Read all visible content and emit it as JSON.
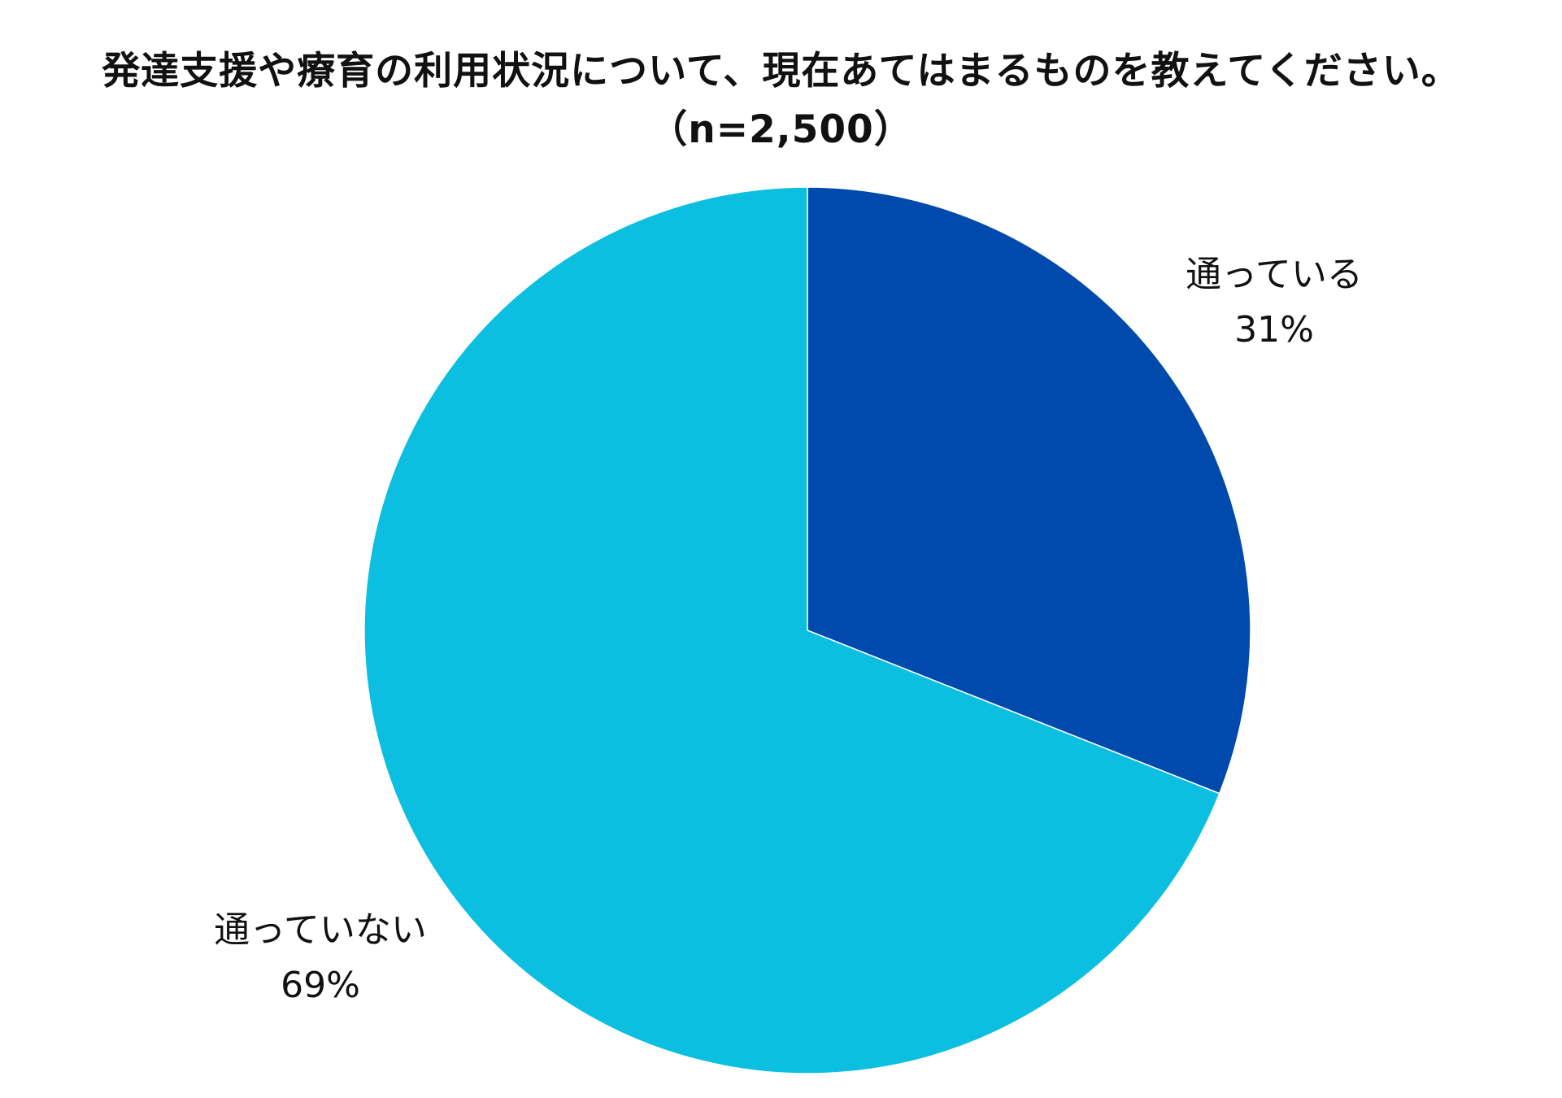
{
  "chart_data": {
    "type": "pie",
    "title": "発達支援や療育の利用状況について、現在あてはまるものを教えてください。",
    "subtitle": "（n=2,500）",
    "slices": [
      {
        "label": "通っている",
        "value": 31,
        "value_label": "31%",
        "color": "#004AAD"
      },
      {
        "label": "通っていない",
        "value": 69,
        "value_label": "69%",
        "color": "#0CBFE0"
      }
    ],
    "legend": "none",
    "grid": false
  }
}
